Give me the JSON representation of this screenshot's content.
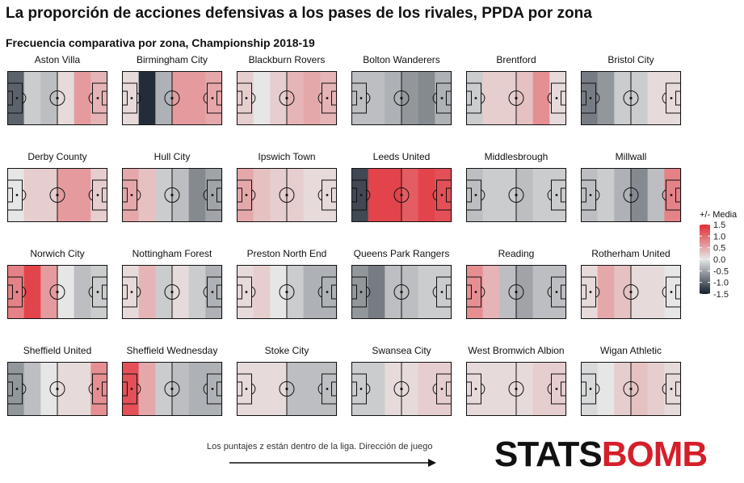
{
  "title": "La proporción de acciones defensivas a los pases de los rivales, PPDA por zona",
  "subtitle": "Frecuencia comparativa por zona, Championship 2018-19",
  "footnote": "Los puntajes z están dentro de la liga. Dirección de juego",
  "brand": {
    "part1": "STATS",
    "part2": "BOMB"
  },
  "chart_data": {
    "type": "heatmap",
    "title": "La proporción de acciones defensivas a los pases de los rivales, PPDA por zona",
    "subtitle": "Frecuencia comparativa por zona, Championship 2018-19",
    "zones": 6,
    "colorbar": {
      "title": "+/- Media",
      "ticks": [
        1.5,
        1.0,
        0.5,
        0.0,
        -0.5,
        -1.0,
        -1.5
      ],
      "tick_labels": [
        "1.5",
        "1.0",
        "0.5",
        "0.0",
        "-0.5",
        "-1.0",
        "-1.5"
      ],
      "range": [
        -1.5,
        1.5
      ],
      "low_color": "#15202e",
      "mid_color": "#e6e6e6",
      "high_color": "#e32b33"
    },
    "teams": [
      {
        "name": "Aston Villa",
        "z": [
          -1.0,
          -0.2,
          -0.3,
          0.1,
          0.6,
          0.4
        ]
      },
      {
        "name": "Birmingham City",
        "z": [
          0.1,
          -1.4,
          -0.4,
          0.6,
          0.6,
          0.5
        ]
      },
      {
        "name": "Blackburn Rovers",
        "z": [
          0.2,
          0.0,
          0.2,
          0.4,
          0.5,
          0.4
        ]
      },
      {
        "name": "Bolton Wanderers",
        "z": [
          -0.3,
          -0.3,
          -0.4,
          -0.6,
          -0.7,
          -0.4
        ]
      },
      {
        "name": "Brentford",
        "z": [
          -0.2,
          0.2,
          0.2,
          0.3,
          0.7,
          0.1
        ]
      },
      {
        "name": "Bristol City",
        "z": [
          -0.8,
          -0.6,
          -0.2,
          -0.2,
          0.1,
          0.1
        ]
      },
      {
        "name": "Derby County",
        "z": [
          0.0,
          0.2,
          0.2,
          0.6,
          0.6,
          0.2
        ]
      },
      {
        "name": "Hull City",
        "z": [
          0.5,
          0.3,
          -0.2,
          -0.3,
          -0.7,
          -0.5
        ]
      },
      {
        "name": "Ipswich Town",
        "z": [
          0.5,
          0.3,
          0.2,
          0.2,
          0.1,
          0.1
        ]
      },
      {
        "name": "Leeds United",
        "z": [
          -1.2,
          1.3,
          1.3,
          1.1,
          1.3,
          1.2
        ]
      },
      {
        "name": "Middlesbrough",
        "z": [
          -0.3,
          -0.2,
          -0.2,
          -0.3,
          -0.2,
          -0.2
        ]
      },
      {
        "name": "Millwall",
        "z": [
          -0.3,
          -0.2,
          -0.4,
          -0.7,
          -0.3,
          0.8
        ]
      },
      {
        "name": "Norwich City",
        "z": [
          0.8,
          1.3,
          0.6,
          0.0,
          -0.3,
          -0.2
        ]
      },
      {
        "name": "Nottingham Forest",
        "z": [
          0.1,
          0.4,
          -0.2,
          0.1,
          -0.2,
          -0.4
        ]
      },
      {
        "name": "Preston North End",
        "z": [
          0.1,
          0.2,
          0.0,
          -0.2,
          -0.4,
          -0.4
        ]
      },
      {
        "name": "Queens Park Rangers",
        "z": [
          -0.6,
          -0.8,
          -0.3,
          -0.3,
          -0.2,
          -0.2
        ]
      },
      {
        "name": "Reading",
        "z": [
          0.7,
          0.4,
          -0.3,
          -0.5,
          -0.3,
          -0.3
        ]
      },
      {
        "name": "Rotherham United",
        "z": [
          0.1,
          0.5,
          0.3,
          0.1,
          0.1,
          0.0
        ]
      },
      {
        "name": "Sheffield United",
        "z": [
          -0.6,
          -0.3,
          0.0,
          0.1,
          0.1,
          0.7
        ]
      },
      {
        "name": "Sheffield Wednesday",
        "z": [
          1.2,
          0.5,
          -0.2,
          -0.3,
          -0.4,
          -0.4
        ]
      },
      {
        "name": "Stoke City",
        "z": [
          0.1,
          0.1,
          0.1,
          -0.3,
          -0.3,
          -0.3
        ]
      },
      {
        "name": "Swansea City",
        "z": [
          -0.2,
          -0.2,
          0.1,
          0.1,
          0.2,
          0.2
        ]
      },
      {
        "name": "West Bromwich Albion",
        "z": [
          0.1,
          0.1,
          0.1,
          0.1,
          0.2,
          0.2
        ]
      },
      {
        "name": "Wigan Athletic",
        "z": [
          -0.1,
          0.0,
          0.2,
          0.3,
          0.2,
          0.1
        ]
      }
    ]
  }
}
